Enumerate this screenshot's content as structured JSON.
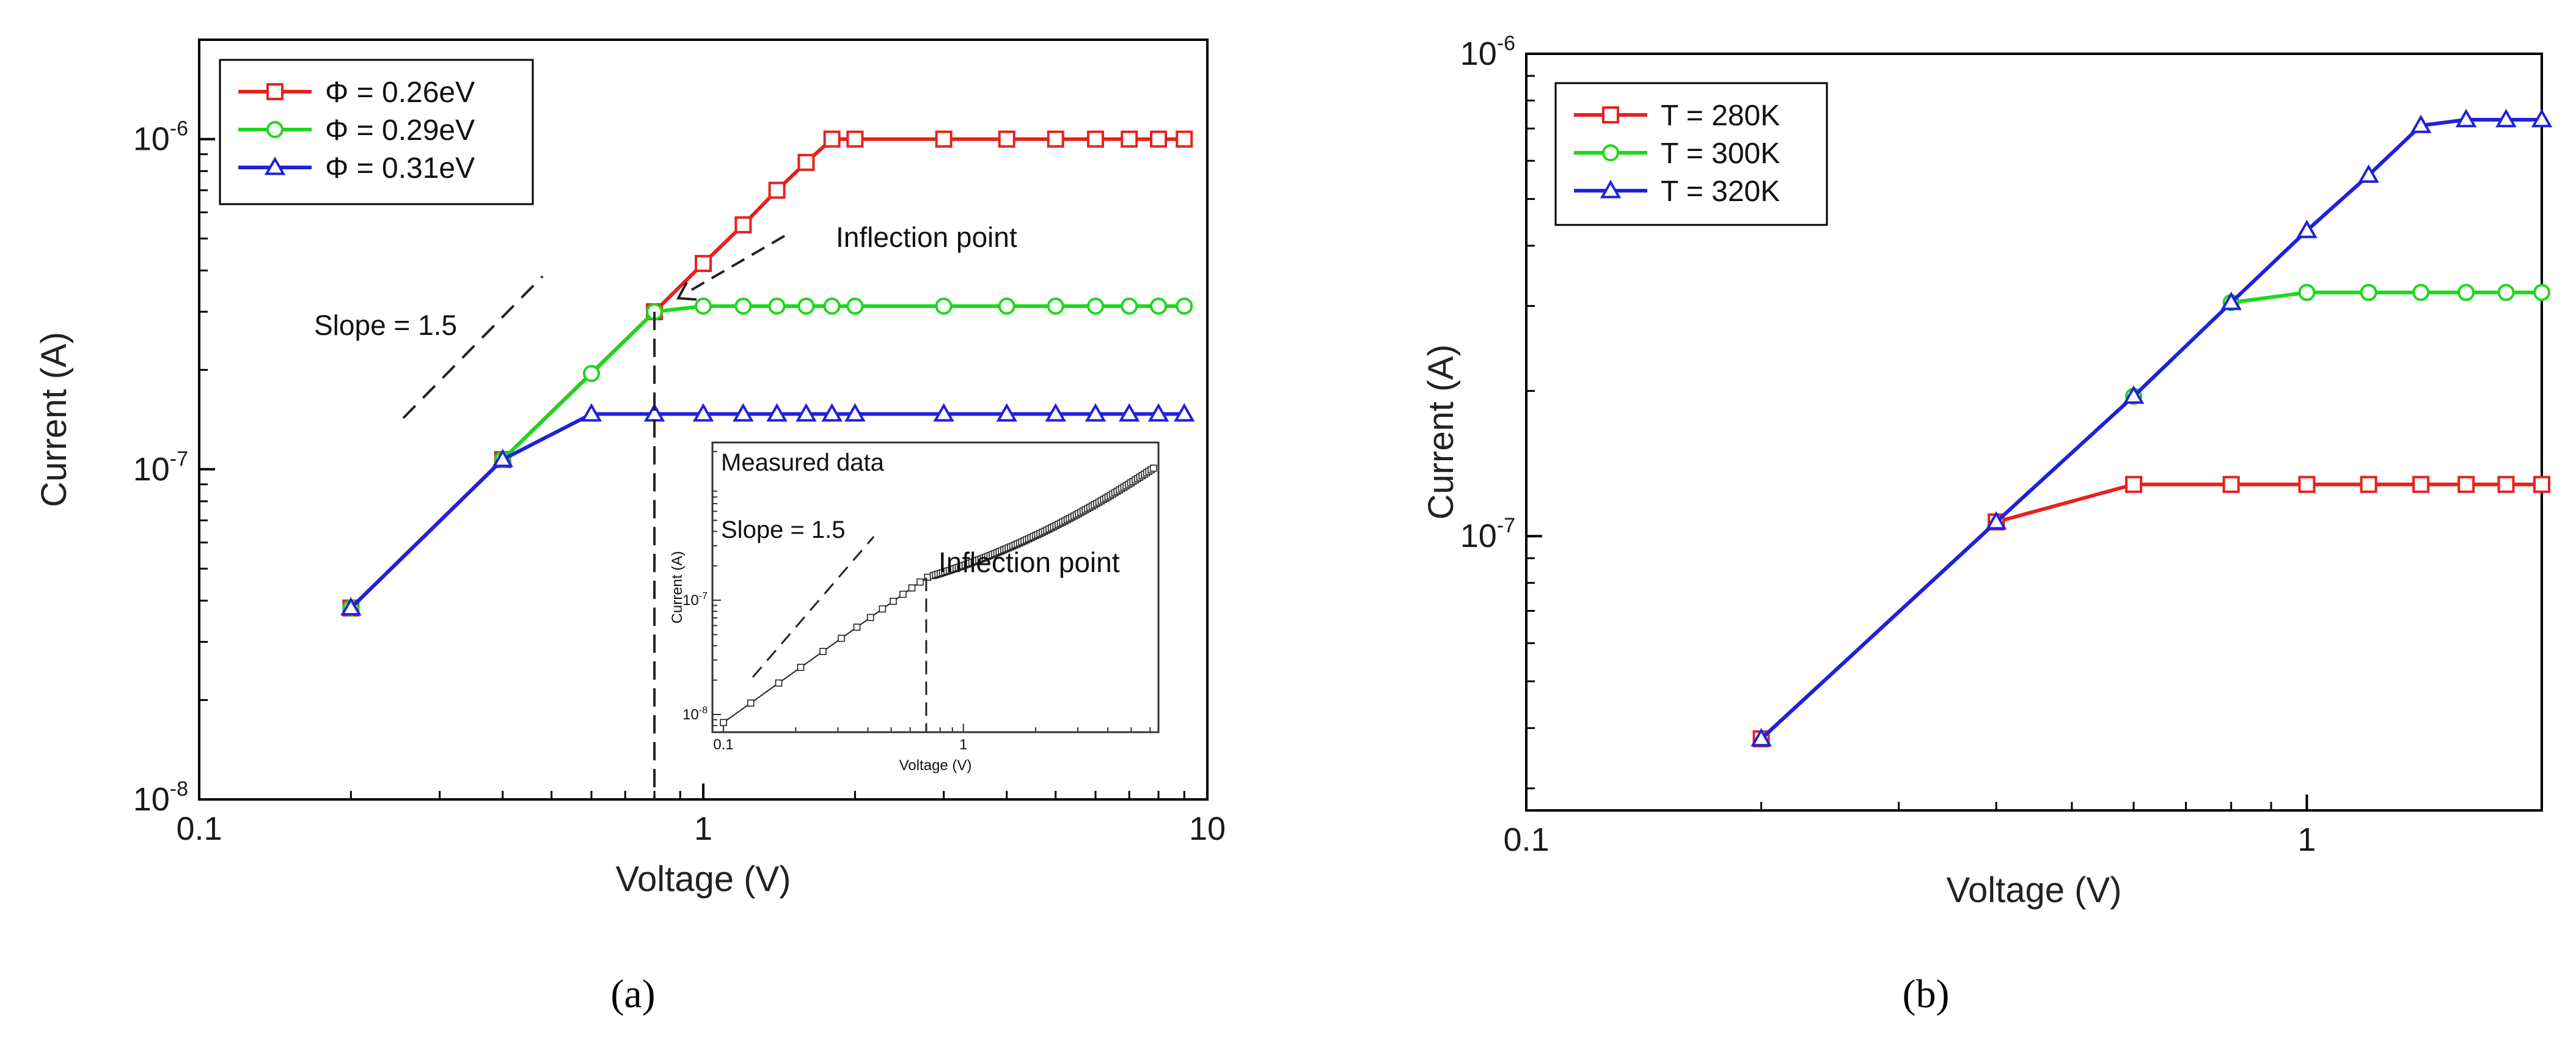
{
  "chart_data": [
    {
      "type": "line",
      "panel": "a",
      "caption": "(a)",
      "xlabel": "Voltage (V)",
      "ylabel": "Current (A)",
      "xscale": "log",
      "yscale": "log",
      "xlim": [
        0.1,
        10
      ],
      "ylim": [
        1e-08,
        2e-06
      ],
      "xticks": [
        0.1,
        1,
        10
      ],
      "xtick_labels": [
        "0.1",
        "1",
        "10"
      ],
      "yticks": [
        {
          "value": 1e-08,
          "base": "10",
          "exp": "-8"
        },
        {
          "value": 1e-07,
          "base": "10",
          "exp": "-7"
        },
        {
          "value": 1e-06,
          "base": "10",
          "exp": "-6"
        }
      ],
      "legend": "top-left",
      "series": [
        {
          "name": "Φ = 0.26eV",
          "color": "#e8211d",
          "marker": "square",
          "points": [
            [
              0.2,
              3.8e-08
            ],
            [
              0.4,
              1.07e-07
            ],
            [
              0.8,
              3e-07
            ],
            [
              1.0,
              4.2e-07
            ],
            [
              1.2,
              5.5e-07
            ],
            [
              1.4,
              7e-07
            ],
            [
              1.6,
              8.5e-07
            ],
            [
              1.8,
              1e-06
            ],
            [
              2.0,
              1e-06
            ],
            [
              3.0,
              1e-06
            ],
            [
              4.0,
              1e-06
            ],
            [
              5.0,
              1e-06
            ],
            [
              6.0,
              1e-06
            ],
            [
              7.0,
              1e-06
            ],
            [
              8.0,
              1e-06
            ],
            [
              9.0,
              1e-06
            ]
          ]
        },
        {
          "name": "Φ = 0.29eV",
          "color": "#1bd81b",
          "marker": "circle",
          "points": [
            [
              0.2,
              3.8e-08
            ],
            [
              0.4,
              1.07e-07
            ],
            [
              0.6,
              1.95e-07
            ],
            [
              0.8,
              3e-07
            ],
            [
              1.0,
              3.12e-07
            ],
            [
              1.2,
              3.12e-07
            ],
            [
              1.4,
              3.12e-07
            ],
            [
              1.6,
              3.12e-07
            ],
            [
              1.8,
              3.12e-07
            ],
            [
              2.0,
              3.12e-07
            ],
            [
              3.0,
              3.12e-07
            ],
            [
              4.0,
              3.12e-07
            ],
            [
              5.0,
              3.12e-07
            ],
            [
              6.0,
              3.12e-07
            ],
            [
              7.0,
              3.12e-07
            ],
            [
              8.0,
              3.12e-07
            ],
            [
              9.0,
              3.12e-07
            ]
          ]
        },
        {
          "name": "Φ = 0.31eV",
          "color": "#2020dd",
          "marker": "triangle",
          "points": [
            [
              0.2,
              3.8e-08
            ],
            [
              0.4,
              1.07e-07
            ],
            [
              0.6,
              1.47e-07
            ],
            [
              0.8,
              1.47e-07
            ],
            [
              1.0,
              1.47e-07
            ],
            [
              1.2,
              1.47e-07
            ],
            [
              1.4,
              1.47e-07
            ],
            [
              1.6,
              1.47e-07
            ],
            [
              1.8,
              1.47e-07
            ],
            [
              2.0,
              1.47e-07
            ],
            [
              3.0,
              1.47e-07
            ],
            [
              4.0,
              1.47e-07
            ],
            [
              5.0,
              1.47e-07
            ],
            [
              6.0,
              1.47e-07
            ],
            [
              7.0,
              1.47e-07
            ],
            [
              8.0,
              1.47e-07
            ],
            [
              9.0,
              1.47e-07
            ]
          ]
        }
      ],
      "annotations": {
        "slope": "Slope = 1.5",
        "inflection": "Inflection point",
        "inflection_voltage": 0.8
      },
      "inset": {
        "type": "scatter",
        "title": "Measured data",
        "xlabel": "Voltage (V)",
        "ylabel": "Current (A)",
        "xscale": "log",
        "yscale": "log",
        "xlim": [
          0.09,
          6.5
        ],
        "ylim": [
          7e-09,
          2.4e-06
        ],
        "xticks": [
          0.1,
          1
        ],
        "xtick_labels": [
          "0.1",
          "1"
        ],
        "yticks": [
          {
            "value": 1e-08,
            "base": "10",
            "exp": "-8"
          },
          {
            "value": 1e-07,
            "base": "10",
            "exp": "-7"
          }
        ],
        "slope_label": "Slope = 1.5",
        "inflection_label": "Inflection point",
        "inflection_voltage": 0.7
      }
    },
    {
      "type": "line",
      "panel": "b",
      "caption": "(b)",
      "xlabel": "Voltage (V)",
      "ylabel": "Current (A)",
      "xscale": "log",
      "yscale": "log",
      "xlim": [
        0.1,
        2.0
      ],
      "ylim": [
        2.7e-08,
        1e-06
      ],
      "xticks": [
        0.1,
        1
      ],
      "xtick_labels": [
        "0.1",
        "1"
      ],
      "yticks": [
        {
          "value": 1e-07,
          "base": "10",
          "exp": "-7"
        },
        {
          "value": 1e-06,
          "base": "10",
          "exp": "-6"
        }
      ],
      "legend": "top-left",
      "series": [
        {
          "name": "T = 280K",
          "color": "#e8211d",
          "marker": "square",
          "points": [
            [
              0.2,
              3.8e-08
            ],
            [
              0.4,
              1.07e-07
            ],
            [
              0.6,
              1.28e-07
            ],
            [
              0.8,
              1.28e-07
            ],
            [
              1.0,
              1.28e-07
            ],
            [
              1.2,
              1.28e-07
            ],
            [
              1.4,
              1.28e-07
            ],
            [
              1.6,
              1.28e-07
            ],
            [
              1.8,
              1.28e-07
            ],
            [
              2.0,
              1.28e-07
            ]
          ]
        },
        {
          "name": "T = 300K",
          "color": "#1bd81b",
          "marker": "circle",
          "points": [
            [
              0.2,
              3.8e-08
            ],
            [
              0.4,
              1.07e-07
            ],
            [
              0.6,
              1.95e-07
            ],
            [
              0.8,
              3.05e-07
            ],
            [
              1.0,
              3.2e-07
            ],
            [
              1.2,
              3.2e-07
            ],
            [
              1.4,
              3.2e-07
            ],
            [
              1.6,
              3.2e-07
            ],
            [
              1.8,
              3.2e-07
            ],
            [
              2.0,
              3.2e-07
            ]
          ]
        },
        {
          "name": "T = 320K",
          "color": "#2020dd",
          "marker": "triangle",
          "points": [
            [
              0.2,
              3.8e-08
            ],
            [
              0.4,
              1.07e-07
            ],
            [
              0.6,
              1.95e-07
            ],
            [
              0.8,
              3.05e-07
            ],
            [
              1.0,
              4.3e-07
            ],
            [
              1.2,
              5.6e-07
            ],
            [
              1.4,
              7.1e-07
            ],
            [
              1.6,
              7.3e-07
            ],
            [
              1.8,
              7.3e-07
            ],
            [
              2.0,
              7.3e-07
            ]
          ]
        }
      ]
    }
  ]
}
